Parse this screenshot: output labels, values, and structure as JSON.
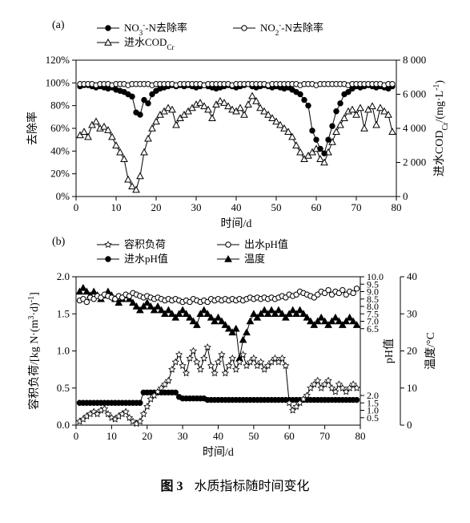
{
  "caption_label": "图 3",
  "caption_text": "水质指标随时间变化",
  "panel_a": {
    "label": "(a)",
    "type": "line-scatter-dual-axis",
    "x": {
      "label": "时间/d",
      "min": 0,
      "max": 80,
      "tick_step": 10,
      "fontsize": 14
    },
    "y_left": {
      "label": "去除率",
      "min": 0,
      "max": 120,
      "tick_step": 20,
      "fmt": "%",
      "fontsize": 14
    },
    "y_right": {
      "label": "进水CODCr/(mg·L-1)",
      "min": 0,
      "max": 8000,
      "tick_step": 2000,
      "fontsize": 14
    },
    "legend": [
      {
        "key": "no3",
        "text": "NO3--N去除率",
        "marker": "solid-circle",
        "line": true
      },
      {
        "key": "no2",
        "text": "NO2--N去除率",
        "marker": "open-circle",
        "line": true
      },
      {
        "key": "cod",
        "text": "进水CODCr",
        "marker": "open-triangle",
        "line": true
      }
    ],
    "series": {
      "no3": {
        "axis": "left",
        "marker": "solid-circle",
        "color": "#000",
        "x": [
          1,
          2,
          3,
          4,
          5,
          6,
          7,
          8,
          9,
          10,
          11,
          12,
          13,
          14,
          15,
          16,
          17,
          18,
          19,
          20,
          21,
          22,
          23,
          24,
          25,
          26,
          27,
          28,
          29,
          30,
          31,
          32,
          33,
          34,
          35,
          36,
          37,
          38,
          39,
          40,
          41,
          42,
          43,
          44,
          45,
          46,
          47,
          48,
          49,
          50,
          51,
          52,
          53,
          54,
          55,
          56,
          57,
          58,
          59,
          60,
          61,
          62,
          63,
          64,
          65,
          66,
          67,
          68,
          69,
          70,
          71,
          72,
          73,
          74,
          75,
          76,
          77,
          78,
          79
        ],
        "y": [
          97,
          98,
          98,
          97,
          96,
          97,
          96,
          95,
          96,
          94,
          93,
          92,
          90,
          88,
          74,
          72,
          85,
          82,
          90,
          93,
          95,
          96,
          97,
          98,
          97,
          98,
          97,
          98,
          97,
          96,
          97,
          98,
          97,
          96,
          95,
          96,
          97,
          98,
          97,
          96,
          97,
          98,
          99,
          97,
          96,
          97,
          98,
          97,
          96,
          97,
          96,
          95,
          96,
          94,
          92,
          90,
          85,
          80,
          58,
          50,
          42,
          38,
          50,
          62,
          75,
          82,
          90,
          92,
          95,
          97,
          96,
          97,
          98,
          97,
          96,
          97,
          96,
          95,
          97
        ]
      },
      "no2": {
        "axis": "left",
        "marker": "open-circle",
        "color": "#000",
        "x": [
          1,
          2,
          3,
          4,
          5,
          6,
          7,
          8,
          9,
          10,
          11,
          12,
          13,
          14,
          15,
          16,
          17,
          18,
          19,
          20,
          21,
          22,
          23,
          24,
          25,
          26,
          27,
          28,
          29,
          30,
          31,
          32,
          33,
          34,
          35,
          36,
          37,
          38,
          39,
          40,
          41,
          42,
          43,
          44,
          45,
          46,
          47,
          48,
          49,
          50,
          51,
          52,
          53,
          54,
          55,
          56,
          57,
          58,
          59,
          60,
          61,
          62,
          63,
          64,
          65,
          66,
          67,
          68,
          69,
          70,
          71,
          72,
          73,
          74,
          75,
          76,
          77,
          78,
          79
        ],
        "y": [
          99,
          99,
          99,
          99,
          98,
          99,
          99,
          99,
          98,
          99,
          99,
          99,
          98,
          99,
          99,
          99,
          99,
          99,
          98,
          99,
          99,
          99,
          99,
          99,
          98,
          99,
          99,
          99,
          99,
          99,
          99,
          98,
          99,
          99,
          99,
          99,
          99,
          99,
          98,
          99,
          99,
          99,
          99,
          99,
          99,
          99,
          99,
          98,
          99,
          99,
          99,
          99,
          99,
          99,
          99,
          98,
          99,
          99,
          99,
          98,
          99,
          99,
          99,
          99,
          99,
          99,
          99,
          98,
          99,
          99,
          99,
          99,
          99,
          99,
          99,
          99,
          98,
          99,
          99
        ]
      },
      "cod": {
        "axis": "right",
        "marker": "open-triangle",
        "color": "#000",
        "x": [
          1,
          2,
          3,
          4,
          5,
          6,
          7,
          8,
          9,
          10,
          11,
          12,
          13,
          14,
          15,
          16,
          17,
          18,
          19,
          20,
          21,
          22,
          23,
          24,
          25,
          26,
          27,
          28,
          29,
          30,
          31,
          32,
          33,
          34,
          35,
          36,
          37,
          38,
          39,
          40,
          41,
          42,
          43,
          44,
          45,
          46,
          47,
          48,
          49,
          50,
          51,
          52,
          53,
          54,
          55,
          56,
          57,
          58,
          59,
          60,
          61,
          62,
          63,
          64,
          65,
          66,
          67,
          68,
          69,
          70,
          71,
          72,
          73,
          74,
          75,
          76,
          77,
          78,
          79
        ],
        "y": [
          3600,
          3800,
          3500,
          4200,
          4400,
          4000,
          4100,
          3900,
          3500,
          3000,
          2600,
          2200,
          1000,
          600,
          400,
          1200,
          2600,
          3400,
          4000,
          4400,
          4800,
          5000,
          5200,
          5100,
          4200,
          4600,
          4800,
          5000,
          5200,
          5400,
          5500,
          5300,
          5100,
          4600,
          5400,
          5600,
          5500,
          5300,
          5100,
          5000,
          5200,
          4800,
          5400,
          5900,
          5600,
          5200,
          5000,
          4800,
          4600,
          4400,
          4200,
          4000,
          3800,
          3500,
          3000,
          2600,
          2200,
          2400,
          2600,
          2800,
          2200,
          2000,
          2600,
          3200,
          3800,
          4200,
          4600,
          5000,
          5100,
          4800,
          5200,
          4000,
          5100,
          5300,
          4200,
          5200,
          5000,
          4800,
          3800
        ]
      }
    },
    "background": "#ffffff",
    "axis_color": "#000",
    "tick_len": 5,
    "marker_size": 4,
    "line_width": 1
  },
  "panel_b": {
    "label": "(b)",
    "type": "line-scatter-triple-axis",
    "x": {
      "label": "时间/d",
      "min": 0,
      "max": 80,
      "tick_step": 10,
      "fontsize": 14
    },
    "y_left": {
      "label": "容积负荷/[kg N·(m3·d)-1]",
      "min": 0,
      "max": 2.0,
      "tick_step": 0.5,
      "fontsize": 14
    },
    "y_right1": {
      "label": "pH值",
      "min": 0,
      "max": 10.0,
      "tick_step": 2.0,
      "extra_ticks": [
        0.5,
        1.5,
        6.5,
        7.0,
        7.5,
        8.0,
        8.5,
        9.0,
        9.5
      ],
      "fontsize": 14
    },
    "y_right2": {
      "label": "温度/°C",
      "min": 0,
      "max": 40,
      "tick_step": 10,
      "fontsize": 14
    },
    "legend": [
      {
        "key": "load",
        "text": "容积负荷",
        "marker": "open-star",
        "line": true
      },
      {
        "key": "ph_out",
        "text": "出水pH值",
        "marker": "open-circle",
        "line": true
      },
      {
        "key": "ph_in",
        "text": "进水pH值",
        "marker": "solid-circle",
        "line": true
      },
      {
        "key": "temp",
        "text": "温度",
        "marker": "solid-triangle",
        "line": true
      }
    ],
    "series": {
      "load": {
        "axis": "left",
        "marker": "open-star",
        "color": "#000",
        "x": [
          1,
          2,
          3,
          4,
          5,
          6,
          7,
          8,
          9,
          10,
          11,
          12,
          13,
          14,
          15,
          16,
          17,
          18,
          19,
          20,
          21,
          22,
          23,
          24,
          25,
          26,
          27,
          28,
          29,
          30,
          31,
          32,
          33,
          34,
          35,
          36,
          37,
          38,
          39,
          40,
          41,
          42,
          43,
          44,
          45,
          46,
          47,
          48,
          49,
          50,
          51,
          52,
          53,
          54,
          55,
          56,
          57,
          58,
          59,
          60,
          61,
          62,
          63,
          64,
          65,
          66,
          67,
          68,
          69,
          70,
          71,
          72,
          73,
          74,
          75,
          76,
          77,
          78,
          79
        ],
        "y": [
          0.05,
          0.08,
          0.12,
          0.15,
          0.18,
          0.15,
          0.2,
          0.22,
          0.15,
          0.1,
          0.08,
          0.12,
          0.15,
          0.18,
          0.1,
          0.05,
          0.02,
          0.05,
          0.15,
          0.25,
          0.35,
          0.4,
          0.45,
          0.5,
          0.55,
          0.6,
          0.75,
          0.85,
          0.95,
          0.8,
          0.7,
          0.9,
          1.0,
          0.85,
          0.75,
          0.9,
          1.05,
          0.8,
          0.7,
          0.85,
          0.95,
          0.7,
          0.8,
          0.9,
          0.75,
          0.85,
          0.95,
          0.8,
          0.85,
          0.9,
          0.8,
          0.85,
          0.75,
          0.8,
          0.85,
          0.9,
          0.85,
          0.9,
          0.8,
          0.3,
          0.2,
          0.25,
          0.3,
          0.35,
          0.4,
          0.5,
          0.55,
          0.6,
          0.5,
          0.55,
          0.6,
          0.5,
          0.45,
          0.55,
          0.5,
          0.45,
          0.5,
          0.55,
          0.5
        ]
      },
      "ph_out": {
        "axis": "right1",
        "marker": "open-circle",
        "color": "#000",
        "x": [
          1,
          2,
          3,
          4,
          5,
          6,
          7,
          8,
          9,
          10,
          11,
          12,
          13,
          14,
          15,
          16,
          17,
          18,
          19,
          20,
          21,
          22,
          23,
          24,
          25,
          26,
          27,
          28,
          29,
          30,
          31,
          32,
          33,
          34,
          35,
          36,
          37,
          38,
          39,
          40,
          41,
          42,
          43,
          44,
          45,
          46,
          47,
          48,
          49,
          50,
          51,
          52,
          53,
          54,
          55,
          56,
          57,
          58,
          59,
          60,
          61,
          62,
          63,
          64,
          65,
          66,
          67,
          68,
          69,
          70,
          71,
          72,
          73,
          74,
          75,
          76,
          77,
          78,
          79
        ],
        "y": [
          8.4,
          8.5,
          8.3,
          8.6,
          8.5,
          8.7,
          8.6,
          8.8,
          8.7,
          8.6,
          8.5,
          8.7,
          8.6,
          8.8,
          8.7,
          8.9,
          8.8,
          8.7,
          8.6,
          8.7,
          8.6,
          8.5,
          8.6,
          8.5,
          8.4,
          8.5,
          8.4,
          8.5,
          8.4,
          8.3,
          8.4,
          8.3,
          8.5,
          8.4,
          8.3,
          8.4,
          8.3,
          8.5,
          8.4,
          8.5,
          8.4,
          8.5,
          8.4,
          8.5,
          8.4,
          8.5,
          8.4,
          8.5,
          8.6,
          8.5,
          8.6,
          8.5,
          8.6,
          8.5,
          8.6,
          8.5,
          8.6,
          8.7,
          8.6,
          8.8,
          8.7,
          8.8,
          9.0,
          8.9,
          8.8,
          8.7,
          8.6,
          8.8,
          9.0,
          8.9,
          9.1,
          8.8,
          9.0,
          8.9,
          9.1,
          8.8,
          9.0,
          8.9,
          9.2
        ]
      },
      "ph_in": {
        "axis": "right1",
        "marker": "solid-circle",
        "color": "#000",
        "x": [
          1,
          2,
          3,
          4,
          5,
          6,
          7,
          8,
          9,
          10,
          11,
          12,
          13,
          14,
          15,
          16,
          17,
          18,
          19,
          20,
          21,
          22,
          23,
          24,
          25,
          26,
          27,
          28,
          29,
          30,
          31,
          32,
          33,
          34,
          35,
          36,
          37,
          38,
          39,
          40,
          41,
          42,
          43,
          44,
          45,
          46,
          47,
          48,
          49,
          50,
          51,
          52,
          53,
          54,
          55,
          56,
          57,
          58,
          59,
          60,
          61,
          62,
          63,
          64,
          65,
          66,
          67,
          68,
          69,
          70,
          71,
          72,
          73,
          74,
          75,
          76,
          77,
          78,
          79
        ],
        "y": [
          1.5,
          1.5,
          1.5,
          1.5,
          1.5,
          1.5,
          1.5,
          1.5,
          1.5,
          1.5,
          1.5,
          1.5,
          1.5,
          1.5,
          1.5,
          1.5,
          1.5,
          1.5,
          2.2,
          2.2,
          2.2,
          2.2,
          2.2,
          2.2,
          2.2,
          2.2,
          2.2,
          2.2,
          1.9,
          1.8,
          1.8,
          1.8,
          1.8,
          1.8,
          1.8,
          1.8,
          1.7,
          1.7,
          1.7,
          1.7,
          1.7,
          1.7,
          1.7,
          1.7,
          1.7,
          1.7,
          1.7,
          1.7,
          1.7,
          1.7,
          1.7,
          1.7,
          1.7,
          1.7,
          1.7,
          1.7,
          1.7,
          1.7,
          1.7,
          1.7,
          1.7,
          1.7,
          1.7,
          1.7,
          1.7,
          1.7,
          1.7,
          1.7,
          1.7,
          1.7,
          1.7,
          1.7,
          1.7,
          1.7,
          1.7,
          1.7,
          1.7,
          1.7,
          1.7
        ]
      },
      "temp": {
        "axis": "right2",
        "marker": "solid-triangle",
        "color": "#000",
        "x": [
          1,
          2,
          3,
          4,
          5,
          6,
          7,
          8,
          9,
          10,
          11,
          12,
          13,
          14,
          15,
          16,
          17,
          18,
          19,
          20,
          21,
          22,
          23,
          24,
          25,
          26,
          27,
          28,
          29,
          30,
          31,
          32,
          33,
          34,
          35,
          36,
          37,
          38,
          39,
          40,
          41,
          42,
          43,
          44,
          45,
          46,
          47,
          48,
          49,
          50,
          51,
          52,
          53,
          54,
          55,
          56,
          57,
          58,
          59,
          60,
          61,
          62,
          63,
          64,
          65,
          66,
          67,
          68,
          69,
          70,
          71,
          72,
          73,
          74,
          75,
          76,
          77,
          78,
          79
        ],
        "y": [
          36,
          37,
          36,
          35,
          36,
          35,
          34,
          35,
          36,
          35,
          34,
          33,
          34,
          35,
          34,
          33,
          32,
          31,
          32,
          33,
          32,
          31,
          32,
          31,
          30,
          31,
          30,
          29,
          30,
          31,
          30,
          29,
          28,
          27,
          30,
          31,
          30,
          29,
          28,
          29,
          28,
          27,
          26,
          25,
          26,
          18,
          23,
          25,
          28,
          30,
          29,
          30,
          31,
          30,
          31,
          30,
          31,
          30,
          29,
          30,
          31,
          30,
          31,
          30,
          29,
          28,
          27,
          28,
          29,
          28,
          27,
          28,
          29,
          28,
          27,
          28,
          29,
          28,
          27
        ]
      }
    },
    "background": "#ffffff",
    "axis_color": "#000",
    "tick_len": 5,
    "marker_size": 4,
    "line_width": 1
  }
}
